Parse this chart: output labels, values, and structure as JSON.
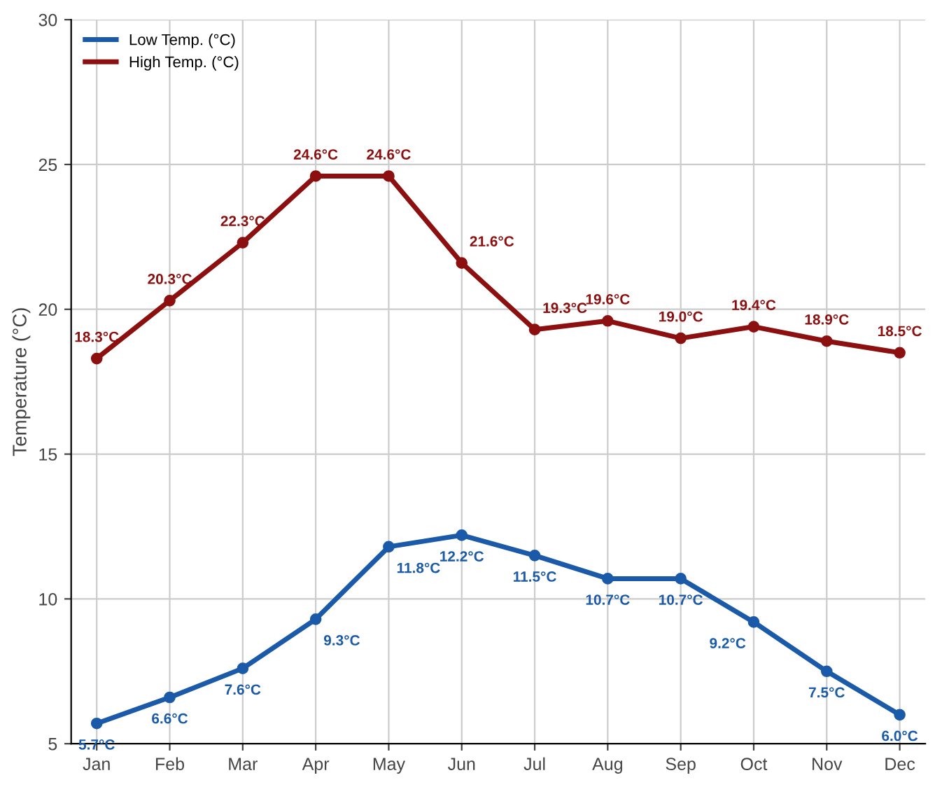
{
  "chart_data": {
    "type": "line",
    "ylabel": "Temperature (°C)",
    "categories": [
      "Jan",
      "Feb",
      "Mar",
      "Apr",
      "May",
      "Jun",
      "Jul",
      "Aug",
      "Sep",
      "Oct",
      "Nov",
      "Dec"
    ],
    "series": [
      {
        "name": "Low Temp. (°C)",
        "color": "#1a5aa8",
        "values": [
          5.7,
          6.6,
          7.6,
          9.3,
          11.8,
          12.2,
          11.5,
          10.7,
          10.7,
          9.2,
          7.5,
          6.0
        ],
        "value_labels": [
          "5.7°C",
          "6.6°C",
          "7.6°C",
          "9.3°C",
          "11.8°C",
          "12.2°C",
          "11.5°C",
          "10.7°C",
          "10.7°C",
          "9.2°C",
          "7.5°C",
          "6.0°C"
        ]
      },
      {
        "name": "High Temp. (°C)",
        "color": "#8c1010",
        "values": [
          18.3,
          20.3,
          22.3,
          24.6,
          24.6,
          21.6,
          19.3,
          19.6,
          19.0,
          19.4,
          18.9,
          18.5
        ],
        "value_labels": [
          "18.3°C",
          "20.3°C",
          "22.3°C",
          "24.6°C",
          "24.6°C",
          "21.6°C",
          "19.3°C",
          "19.6°C",
          "19.0°C",
          "19.4°C",
          "18.9°C",
          "18.5°C"
        ]
      }
    ],
    "ylim": [
      5,
      30
    ],
    "yticks": [
      5,
      10,
      15,
      20,
      25,
      30
    ],
    "grid": true,
    "legend": "top left",
    "marker": "circle",
    "line_style": "solid"
  }
}
